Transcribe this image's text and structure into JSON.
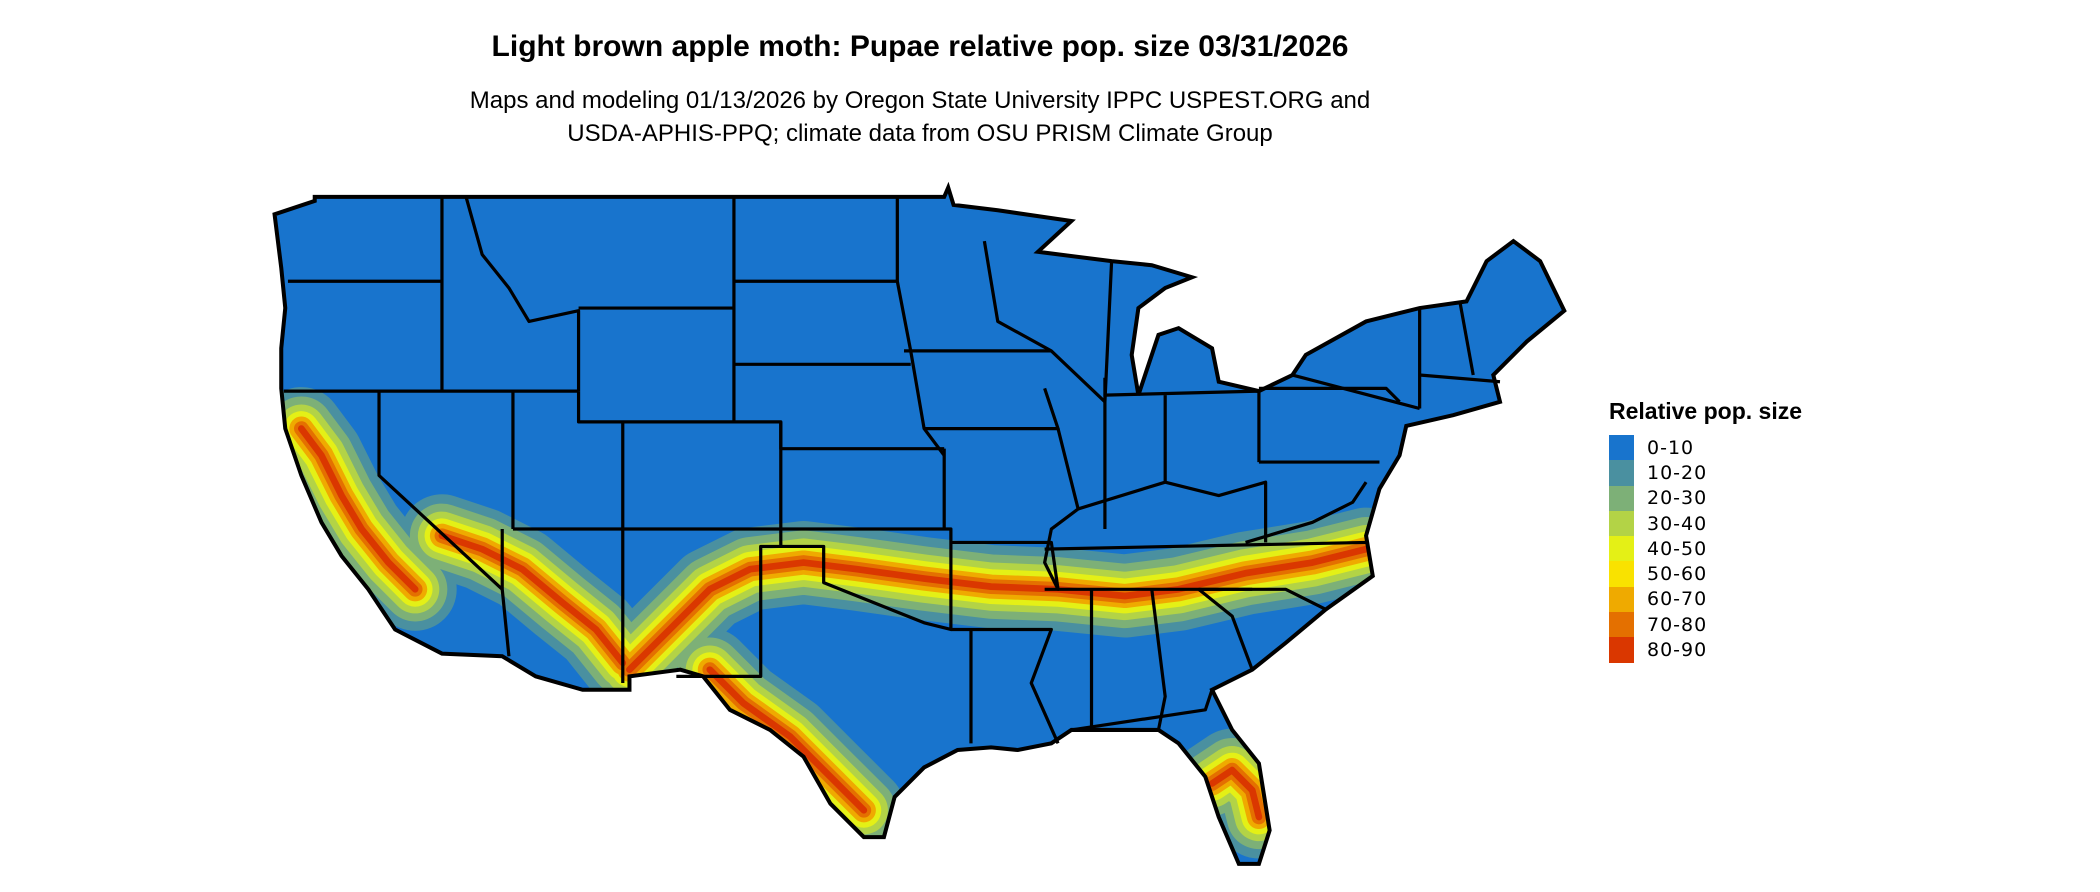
{
  "title": "Light brown apple moth: Pupae relative pop. size 03/31/2026",
  "subtitle_lines": [
    "Maps and modeling 01/13/2026 by Oregon State University IPPC USPEST.ORG and",
    "USDA-APHIS-PPQ; climate data from OSU PRISM Climate Group"
  ],
  "legend": {
    "title": "Relative pop. size",
    "items": [
      {
        "label": "0-10",
        "color": "#1874CD"
      },
      {
        "label": "10-20",
        "color": "#4A90A0"
      },
      {
        "label": "20-30",
        "color": "#7DB077"
      },
      {
        "label": "30-40",
        "color": "#B3D346"
      },
      {
        "label": "40-50",
        "color": "#E4F016"
      },
      {
        "label": "50-60",
        "color": "#F9E200"
      },
      {
        "label": "60-70",
        "color": "#EFAA00"
      },
      {
        "label": "70-80",
        "color": "#E47000"
      },
      {
        "label": "80-90",
        "color": "#DA3700"
      }
    ]
  },
  "map": {
    "region": "Contiguous United States",
    "background_color": "#1874CD",
    "border_color": "#000000"
  }
}
